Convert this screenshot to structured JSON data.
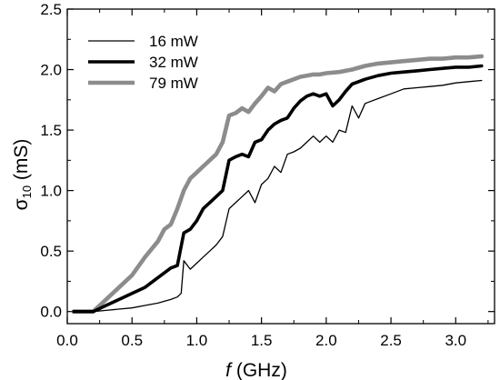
{
  "chart_data": {
    "type": "line",
    "xlabel_prefix": "f",
    "xlabel_suffix": " (GHz)",
    "ylabel_symbol": "σ",
    "ylabel_subscript": "10",
    "ylabel_suffix": " (mS)",
    "xlim": [
      0.0,
      3.3
    ],
    "ylim": [
      -0.1,
      2.5
    ],
    "x_ticks": [
      "0.0",
      "0.5",
      "1.0",
      "1.5",
      "2.0",
      "2.5",
      "3.0"
    ],
    "y_ticks": [
      "0.0",
      "0.5",
      "1.0",
      "1.5",
      "2.0",
      "2.5"
    ],
    "grid": false,
    "legend_position": "top-left",
    "series": [
      {
        "name": "16 mW",
        "color": "#000000",
        "x": [
          0.05,
          0.2,
          0.3,
          0.4,
          0.5,
          0.6,
          0.7,
          0.8,
          0.85,
          0.88,
          0.9,
          0.95,
          1.0,
          1.05,
          1.1,
          1.15,
          1.2,
          1.25,
          1.3,
          1.35,
          1.4,
          1.45,
          1.5,
          1.55,
          1.6,
          1.65,
          1.7,
          1.75,
          1.8,
          1.85,
          1.9,
          1.95,
          2.0,
          2.05,
          2.1,
          2.15,
          2.2,
          2.25,
          2.3,
          2.4,
          2.5,
          2.6,
          2.7,
          2.8,
          2.9,
          3.0,
          3.1,
          3.2
        ],
        "y": [
          0.0,
          0.0,
          0.01,
          0.02,
          0.03,
          0.05,
          0.07,
          0.1,
          0.12,
          0.15,
          0.42,
          0.35,
          0.4,
          0.45,
          0.5,
          0.55,
          0.62,
          0.85,
          0.9,
          0.95,
          1.0,
          0.9,
          1.05,
          1.1,
          1.2,
          1.15,
          1.3,
          1.32,
          1.35,
          1.4,
          1.45,
          1.4,
          1.45,
          1.4,
          1.5,
          1.48,
          1.7,
          1.6,
          1.72,
          1.76,
          1.8,
          1.84,
          1.85,
          1.86,
          1.87,
          1.89,
          1.9,
          1.91
        ]
      },
      {
        "name": "32 mW",
        "color": "#000000",
        "x": [
          0.05,
          0.2,
          0.3,
          0.4,
          0.5,
          0.6,
          0.7,
          0.8,
          0.85,
          0.9,
          0.95,
          1.0,
          1.05,
          1.1,
          1.15,
          1.2,
          1.25,
          1.3,
          1.35,
          1.4,
          1.45,
          1.5,
          1.55,
          1.6,
          1.65,
          1.7,
          1.75,
          1.8,
          1.85,
          1.9,
          1.95,
          2.0,
          2.05,
          2.1,
          2.15,
          2.2,
          2.3,
          2.4,
          2.5,
          2.6,
          2.7,
          2.8,
          2.9,
          3.0,
          3.1,
          3.2
        ],
        "y": [
          0.0,
          0.0,
          0.05,
          0.1,
          0.15,
          0.2,
          0.28,
          0.36,
          0.38,
          0.65,
          0.68,
          0.75,
          0.85,
          0.9,
          0.95,
          1.0,
          1.25,
          1.28,
          1.3,
          1.28,
          1.4,
          1.42,
          1.5,
          1.55,
          1.58,
          1.6,
          1.68,
          1.74,
          1.78,
          1.8,
          1.78,
          1.8,
          1.7,
          1.75,
          1.82,
          1.88,
          1.92,
          1.95,
          1.97,
          1.98,
          1.99,
          2.0,
          2.01,
          2.02,
          2.02,
          2.03
        ]
      },
      {
        "name": "79 mW",
        "color": "#8c8c8c",
        "x": [
          0.05,
          0.2,
          0.3,
          0.4,
          0.5,
          0.6,
          0.7,
          0.75,
          0.8,
          0.85,
          0.9,
          0.95,
          1.0,
          1.05,
          1.1,
          1.15,
          1.2,
          1.25,
          1.3,
          1.35,
          1.4,
          1.45,
          1.5,
          1.55,
          1.6,
          1.65,
          1.7,
          1.75,
          1.8,
          1.85,
          1.9,
          1.95,
          2.0,
          2.1,
          2.2,
          2.3,
          2.4,
          2.5,
          2.6,
          2.7,
          2.8,
          2.9,
          3.0,
          3.1,
          3.2
        ],
        "y": [
          0.0,
          0.0,
          0.1,
          0.2,
          0.3,
          0.45,
          0.58,
          0.68,
          0.72,
          0.85,
          1.0,
          1.1,
          1.15,
          1.2,
          1.25,
          1.3,
          1.4,
          1.62,
          1.64,
          1.68,
          1.65,
          1.72,
          1.78,
          1.85,
          1.82,
          1.88,
          1.9,
          1.92,
          1.94,
          1.95,
          1.96,
          1.96,
          1.97,
          1.98,
          2.0,
          2.03,
          2.05,
          2.06,
          2.07,
          2.08,
          2.09,
          2.09,
          2.1,
          2.1,
          2.11
        ]
      }
    ]
  }
}
